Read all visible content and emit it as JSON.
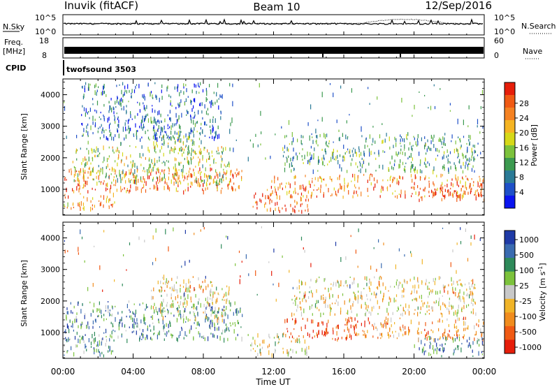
{
  "header": {
    "station": "Inuvik (fitACF)",
    "beam": "Beam 10",
    "date": "12/Sep/2016"
  },
  "summary_panels": {
    "nsky_label": "N.Sky",
    "nsky_ticks": [
      "10^5",
      "10^0"
    ],
    "nsearch_label": "N.Search",
    "nsearch_ticks": [
      "10^5",
      "10^0"
    ],
    "freq_label": "Freq.",
    "freq_unit": "[MHz]",
    "freq_ticks": [
      "18",
      "8"
    ],
    "nave_label": "Nave",
    "nave_ticks": [
      "60",
      "0"
    ],
    "cpid_label": "CPID",
    "cpid_value": "twofsound 3503"
  },
  "chart_data": [
    {
      "type": "heatmap",
      "name": "power",
      "ylabel": "Slant Range [km]",
      "xlabel": "Time UT",
      "x_ticks": [
        "00:00",
        "04:00",
        "08:00",
        "12:00",
        "16:00",
        "20:00",
        "00:00"
      ],
      "x_range_hours": [
        0,
        24
      ],
      "y_ticks": [
        1000,
        2000,
        3000,
        4000
      ],
      "ylim": [
        180,
        4500
      ],
      "colorbar_label": "Power [dB]",
      "colorbar_ticks": [
        "4",
        "8",
        "12",
        "16",
        "20",
        "24",
        "28"
      ],
      "colorbar_colors": [
        "#0a14f0",
        "#1e50c8",
        "#2a7a96",
        "#3c9a50",
        "#7cc23c",
        "#d6d818",
        "#f5b422",
        "#f58222",
        "#f05a14",
        "#e61e0a"
      ],
      "scatter_bands": [
        {
          "t_start": 0.0,
          "t_end": 10.2,
          "r_low": 950,
          "r_high": 1700,
          "level": 0.8
        },
        {
          "t_start": 0.5,
          "t_end": 9.5,
          "r_low": 1200,
          "r_high": 2400,
          "level": 0.5
        },
        {
          "t_start": 0.0,
          "t_end": 3.0,
          "r_low": 400,
          "r_high": 900,
          "level": 0.7
        },
        {
          "t_start": 5.0,
          "t_end": 8.0,
          "r_low": 2200,
          "r_high": 2900,
          "level": 0.45
        },
        {
          "t_start": 1.0,
          "t_end": 9.0,
          "r_low": 2600,
          "r_high": 4400,
          "level": 0.2
        },
        {
          "t_start": 10.8,
          "t_end": 14.0,
          "r_low": 200,
          "r_high": 900,
          "level": 0.85
        },
        {
          "t_start": 11.5,
          "t_end": 24.0,
          "r_low": 800,
          "r_high": 1500,
          "level": 0.75
        },
        {
          "t_start": 12.5,
          "t_end": 23.5,
          "r_low": 1600,
          "r_high": 2800,
          "level": 0.35
        },
        {
          "t_start": 20.0,
          "t_end": 24.0,
          "r_low": 700,
          "r_high": 1200,
          "level": 0.9
        }
      ]
    },
    {
      "type": "heatmap",
      "name": "velocity",
      "ylabel": "Slant Range [km]",
      "xlabel": "Time UT",
      "x_ticks": [
        "00:00",
        "04:00",
        "08:00",
        "12:00",
        "16:00",
        "20:00",
        "00:00"
      ],
      "x_range_hours": [
        0,
        24
      ],
      "y_ticks": [
        1000,
        2000,
        3000,
        4000
      ],
      "ylim": [
        180,
        4500
      ],
      "colorbar_label": "Velocity [m s^-1]",
      "colorbar_ticks": [
        "1000",
        "500",
        "100",
        "25",
        "-25",
        "-100",
        "-500",
        "-1000"
      ],
      "colorbar_colors": [
        "#1f3aa6",
        "#3a6bb0",
        "#2e8a5a",
        "#7cc23c",
        "#c8c8c8",
        "#f0b428",
        "#f08c1e",
        "#f05a14",
        "#e61e0a"
      ],
      "scatter_bands": [
        {
          "t_start": 0.0,
          "t_end": 10.2,
          "r_low": 800,
          "r_high": 2000,
          "level": 0.25
        },
        {
          "t_start": 0.0,
          "t_end": 3.0,
          "r_low": 200,
          "r_high": 900,
          "level": 0.3
        },
        {
          "t_start": 5.0,
          "t_end": 9.5,
          "r_low": 1400,
          "r_high": 2500,
          "level": 0.55
        },
        {
          "t_start": 5.5,
          "t_end": 8.5,
          "r_low": 2300,
          "r_high": 2800,
          "level": 0.6
        },
        {
          "t_start": 10.5,
          "t_end": 14.0,
          "r_low": 300,
          "r_high": 1000,
          "level": 0.5
        },
        {
          "t_start": 12.5,
          "t_end": 17.0,
          "r_low": 800,
          "r_high": 1500,
          "level": 0.92
        },
        {
          "t_start": 16.0,
          "t_end": 24.0,
          "r_low": 800,
          "r_high": 1500,
          "level": 0.7
        },
        {
          "t_start": 13.0,
          "t_end": 23.5,
          "r_low": 1600,
          "r_high": 2800,
          "level": 0.55
        },
        {
          "t_start": 20.0,
          "t_end": 24.0,
          "r_low": 200,
          "r_high": 900,
          "level": 0.2
        }
      ]
    }
  ]
}
